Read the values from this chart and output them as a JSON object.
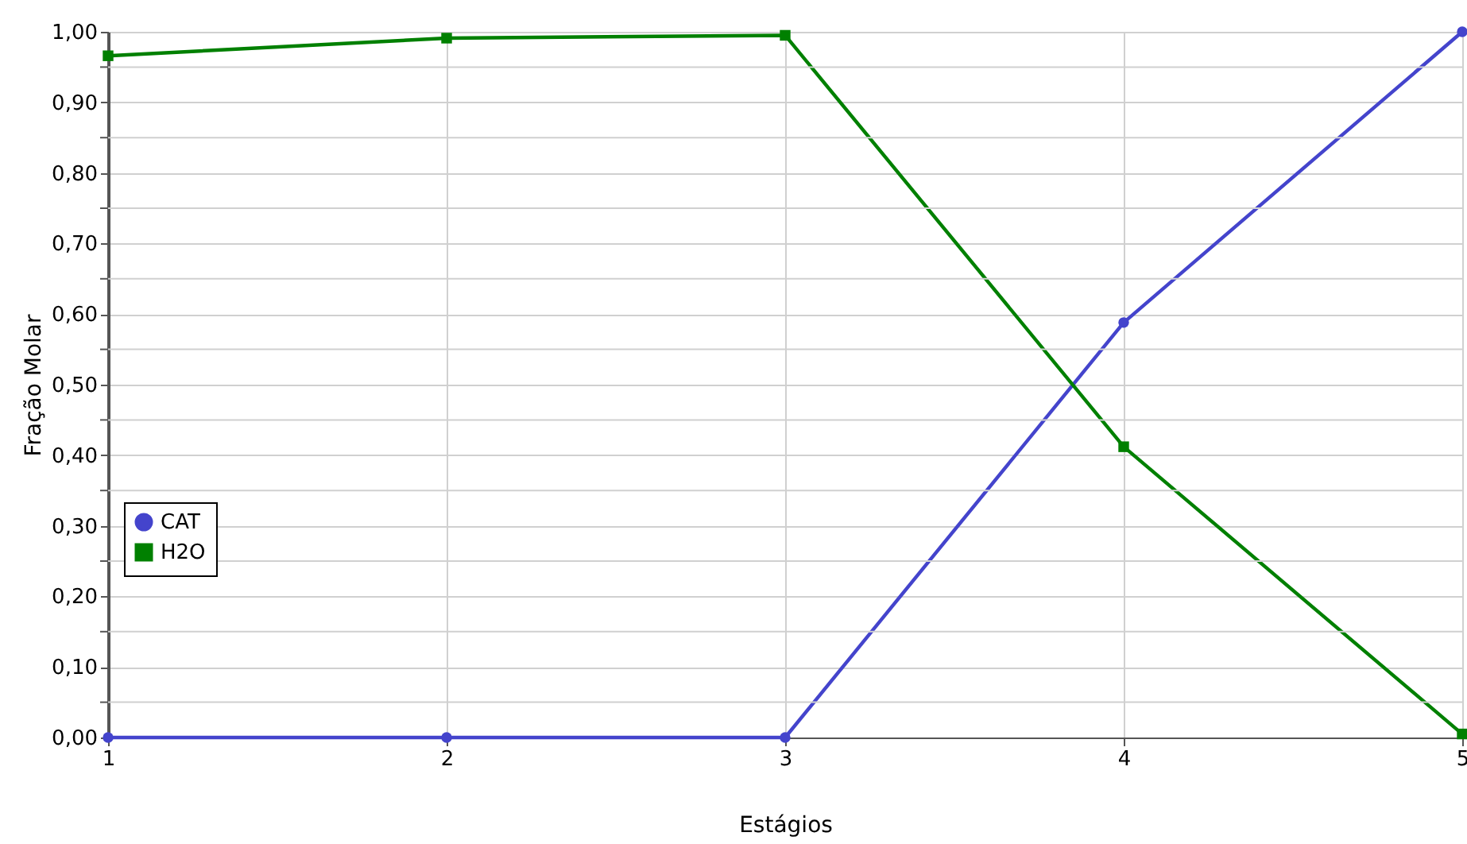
{
  "chart_data": {
    "type": "line",
    "xlabel": "Estágios",
    "ylabel": "Fração Molar",
    "x": [
      1,
      2,
      3,
      4,
      5
    ],
    "series": [
      {
        "name": "CAT",
        "color": "#4444cc",
        "marker": "circle",
        "values": [
          0.0,
          0.0,
          0.0,
          0.588,
          1.0
        ]
      },
      {
        "name": "H2O",
        "color": "#008000",
        "marker": "square",
        "values": [
          0.966,
          0.991,
          0.995,
          0.412,
          0.005
        ]
      }
    ],
    "xlim": [
      1,
      5
    ],
    "xticks": [
      1,
      2,
      3,
      4,
      5
    ],
    "ylim": [
      0,
      1
    ],
    "yticks": [
      {
        "value": 0,
        "label": "0,00"
      },
      {
        "value": 0.05,
        "label": null
      },
      {
        "value": 0.1,
        "label": "0,10"
      },
      {
        "value": 0.15,
        "label": null
      },
      {
        "value": 0.2,
        "label": "0,20"
      },
      {
        "value": 0.25,
        "label": null
      },
      {
        "value": 0.3,
        "label": "0,30"
      },
      {
        "value": 0.35,
        "label": null
      },
      {
        "value": 0.4,
        "label": "0,40"
      },
      {
        "value": 0.45,
        "label": null
      },
      {
        "value": 0.5,
        "label": "0,50"
      },
      {
        "value": 0.55,
        "label": null
      },
      {
        "value": 0.6,
        "label": "0,60"
      },
      {
        "value": 0.65,
        "label": null
      },
      {
        "value": 0.7,
        "label": "0,70"
      },
      {
        "value": 0.75,
        "label": null
      },
      {
        "value": 0.8,
        "label": "0,80"
      },
      {
        "value": 0.85,
        "label": null
      },
      {
        "value": 0.9,
        "label": "0,90"
      },
      {
        "value": 0.95,
        "label": null
      },
      {
        "value": 1.0,
        "label": "1,00"
      }
    ],
    "grid": true,
    "legend": "left",
    "line_style": "solid"
  }
}
